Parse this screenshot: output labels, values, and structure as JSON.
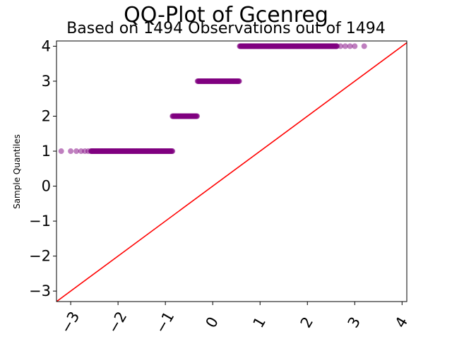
{
  "chart_data": {
    "type": "scatter",
    "title": "QQ-Plot of Gcenreg",
    "subtitle": "Based on 1494 Observations out of 1494",
    "xlabel": "",
    "ylabel": "Sample Quantiles",
    "xlim": [
      -3.3,
      4.1
    ],
    "ylim": [
      -3.3,
      4.15
    ],
    "x_ticks": [
      -3,
      -2,
      -1,
      0,
      1,
      2,
      3,
      4
    ],
    "x_tick_labels": [
      "−3",
      "−2",
      "−1",
      "0",
      "1",
      "2",
      "3",
      "4"
    ],
    "y_ticks": [
      -3,
      -2,
      -1,
      0,
      1,
      2,
      3,
      4
    ],
    "y_tick_labels": [
      "−3",
      "−2",
      "−1",
      "0",
      "1",
      "2",
      "3",
      "4"
    ],
    "grid": false,
    "point_color": "#800080",
    "line_color": "#ff0000",
    "reference_line": {
      "slope": 1,
      "intercept": 0
    },
    "groups": [
      {
        "y": 1,
        "x_min": -3.2,
        "x_max": -0.85,
        "outliers": [
          -3.2,
          -3.0,
          -2.88,
          -2.78,
          -2.7,
          -2.63,
          -2.57
        ]
      },
      {
        "y": 2,
        "x_min": -0.85,
        "x_max": -0.32,
        "outliers": []
      },
      {
        "y": 3,
        "x_min": -0.32,
        "x_max": 0.57,
        "outliers": []
      },
      {
        "y": 4,
        "x_min": 0.57,
        "x_max": 3.2,
        "outliers": [
          2.62,
          2.7,
          2.8,
          2.9,
          3.0,
          3.2
        ]
      }
    ]
  }
}
